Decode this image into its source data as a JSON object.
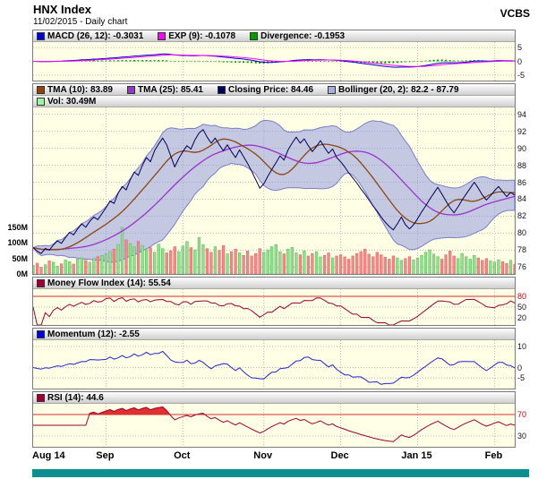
{
  "header": {
    "title": "HNX Index",
    "subtitle": "11/02/2015 - Daily chart",
    "brand": "VCBS"
  },
  "panels": {
    "macd": {
      "legend": [
        {
          "color": "#0000cc",
          "label": "MACD (26, 12): -0.3031"
        },
        {
          "color": "#ff00ff",
          "label": "EXP (9): -0.1078"
        },
        {
          "color": "#009900",
          "label": "Divergence: -0.1953"
        }
      ],
      "range": [
        -7,
        7
      ],
      "yticks": [
        {
          "v": 5,
          "label": "5"
        },
        {
          "v": 0,
          "label": "0"
        },
        {
          "v": -5,
          "label": "-5"
        }
      ]
    },
    "price": {
      "legend": [
        {
          "color": "#8b4513",
          "label": "TMA (10): 83.89"
        },
        {
          "color": "#9933cc",
          "label": "TMA (25): 85.41"
        },
        {
          "color": "#000055",
          "label": "Closing Price: 84.46"
        },
        {
          "color": "#a9aee0",
          "label": "Bollinger (20, 2): 82.2 - 87.79"
        }
      ],
      "legend2": [
        {
          "color": "#a6f0a6",
          "label": "Vol: 30.49M"
        }
      ],
      "range": [
        75.2,
        94.8
      ],
      "yticks": [
        {
          "v": 94,
          "label": "94"
        },
        {
          "v": 92,
          "label": "92"
        },
        {
          "v": 90,
          "label": "90"
        },
        {
          "v": 88,
          "label": "88"
        },
        {
          "v": 86,
          "label": "86"
        },
        {
          "v": 84,
          "label": "84"
        },
        {
          "v": 82,
          "label": "82"
        },
        {
          "v": 80,
          "label": "80"
        },
        {
          "v": 78,
          "label": "78"
        },
        {
          "v": 76,
          "label": "76"
        }
      ],
      "vol_ticks": [
        {
          "v": 150,
          "label": "150M"
        },
        {
          "v": 100,
          "label": "100M"
        },
        {
          "v": 50,
          "label": "50M"
        },
        {
          "v": 0,
          "label": "0M"
        }
      ],
      "volume_axis_max_m": 150
    },
    "mfi": {
      "legend": [
        {
          "color": "#990033",
          "label": "Money Flow Index (14): 55.54"
        }
      ],
      "range": [
        0,
        100
      ],
      "threshold": 80,
      "yticks": [
        {
          "v": 80,
          "label": "80",
          "color": "#cc0000"
        },
        {
          "v": 50,
          "label": "50"
        },
        {
          "v": 20,
          "label": "20"
        }
      ]
    },
    "momentum": {
      "legend": [
        {
          "color": "#0000cc",
          "label": "Momentum (12): -2.55"
        }
      ],
      "range": [
        -10,
        13
      ],
      "yticks": [
        {
          "v": 10,
          "label": "10"
        },
        {
          "v": 0,
          "label": "0"
        },
        {
          "v": -5,
          "label": "-5"
        }
      ]
    },
    "rsi": {
      "legend": [
        {
          "color": "#990033",
          "label": "RSI (14): 44.6"
        }
      ],
      "range": [
        10,
        90
      ],
      "threshold": 70,
      "yticks": [
        {
          "v": 70,
          "label": "70",
          "color": "#cc0000"
        },
        {
          "v": 30,
          "label": "30"
        }
      ]
    }
  },
  "xaxis": {
    "months": [
      {
        "label": "Aug 14",
        "idx": 0
      },
      {
        "label": "Sep",
        "idx": 18
      },
      {
        "label": "Oct",
        "idx": 37
      },
      {
        "label": "Nov",
        "idx": 57
      },
      {
        "label": "Dec",
        "idx": 76
      },
      {
        "label": "Jan 15",
        "idx": 95
      },
      {
        "label": "Feb",
        "idx": 114
      }
    ]
  },
  "chart_data": {
    "type": "line",
    "title": "HNX Index - Daily chart",
    "date": "11/02/2015",
    "x_tick_labels": [
      "Aug 14",
      "Sep",
      "Oct",
      "Nov",
      "Dec",
      "Jan 15",
      "Feb"
    ],
    "price_axis_range": [
      76,
      94
    ],
    "volume_axis_range_m": [
      0,
      150
    ],
    "macd_axis_range": [
      -5,
      5
    ],
    "momentum_axis_ticks": [
      10,
      0,
      -5
    ],
    "mfi_axis_ticks": [
      80,
      50,
      20
    ],
    "rsi_axis_ticks": [
      70,
      30
    ],
    "close": [
      78.3,
      77.9,
      77.6,
      78.2,
      78.0,
      78.6,
      79.1,
      78.8,
      79.5,
      80.1,
      79.8,
      80.5,
      81.1,
      80.7,
      81.4,
      81.9,
      81.6,
      82.3,
      83.0,
      83.8,
      83.5,
      84.7,
      85.5,
      85.1,
      86.3,
      87.2,
      86.8,
      88.0,
      88.9,
      88.4,
      89.7,
      90.5,
      91.2,
      90.4,
      89.1,
      87.8,
      88.8,
      89.6,
      90.3,
      89.9,
      91.0,
      91.8,
      92.2,
      91.3,
      90.6,
      91.2,
      90.4,
      89.7,
      90.4,
      89.6,
      88.9,
      89.8,
      89.0,
      88.2,
      87.3,
      86.3,
      85.3,
      85.8,
      86.7,
      87.5,
      88.3,
      89.1,
      88.6,
      89.8,
      90.6,
      91.3,
      90.6,
      91.1,
      90.3,
      89.6,
      90.2,
      90.9,
      90.1,
      89.4,
      89.9,
      88.9,
      88.4,
      87.8,
      87.1,
      86.5,
      85.9,
      85.2,
      84.6,
      83.9,
      83.2,
      82.6,
      81.9,
      81.3,
      80.8,
      80.4,
      81.1,
      81.9,
      81.0,
      80.5,
      81.0,
      81.7,
      82.5,
      83.2,
      84.0,
      84.7,
      85.4,
      84.6,
      83.8,
      83.0,
      82.4,
      83.1,
      83.9,
      84.6,
      85.3,
      86.0,
      85.3,
      84.5,
      83.9,
      84.4,
      85.0,
      85.5,
      84.9,
      84.3,
      84.8,
      84.46
    ],
    "volume_m": [
      28,
      35,
      22,
      30,
      42,
      38,
      25,
      33,
      45,
      40,
      32,
      48,
      52,
      44,
      38,
      50,
      56,
      60,
      65,
      72,
      80,
      95,
      150,
      110,
      98,
      88,
      105,
      92,
      78,
      85,
      70,
      96,
      82,
      68,
      75,
      88,
      72,
      90,
      105,
      85,
      78,
      118,
      95,
      82,
      70,
      88,
      76,
      92,
      65,
      72,
      80,
      68,
      60,
      74,
      58,
      66,
      82,
      70,
      78,
      88,
      95,
      72,
      65,
      80,
      86,
      68,
      62,
      74,
      58,
      66,
      72,
      55,
      60,
      68,
      52,
      58,
      62,
      55,
      48,
      58,
      66,
      72,
      80,
      64,
      56,
      70,
      62,
      54,
      48,
      58,
      52,
      44,
      50,
      56,
      46,
      52,
      60,
      70,
      78,
      64,
      56,
      48,
      62,
      74,
      58,
      50,
      66,
      56,
      48,
      60,
      52,
      44,
      50,
      42,
      38,
      46,
      40,
      34,
      44,
      30.49
    ],
    "latest": {
      "closing_price": 84.46,
      "tma10": 83.89,
      "tma25": 85.41,
      "bollinger_20_2": "82.2 - 87.79",
      "volume": "30.49M",
      "macd_26_12": -0.3031,
      "exp_9": -0.1078,
      "divergence": -0.1953,
      "money_flow_index_14": 55.54,
      "momentum_12": -2.55,
      "rsi_14": 44.6
    }
  }
}
